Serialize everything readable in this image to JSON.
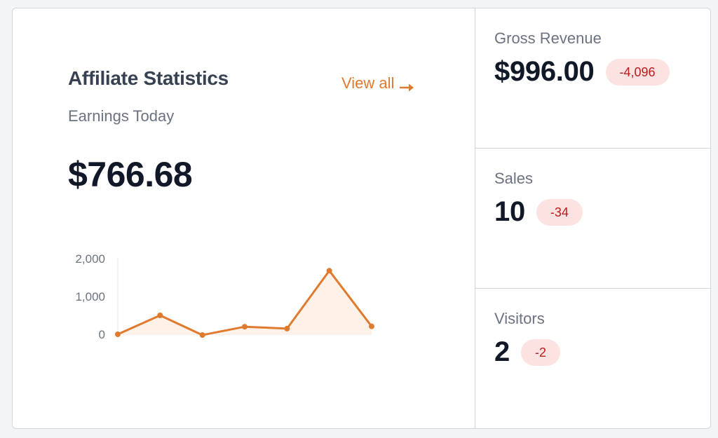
{
  "affiliate": {
    "title": "Affiliate Statistics",
    "view_all": "View all",
    "subtitle": "Earnings Today",
    "earnings": "$766.68",
    "accent_color": "#e07a2f"
  },
  "chart_data": {
    "type": "area",
    "x": [
      1,
      2,
      3,
      4,
      5,
      6,
      7
    ],
    "values": [
      0,
      500,
      -20,
      200,
      150,
      1680,
      210
    ],
    "ylim": [
      0,
      2000
    ],
    "yticks": [
      0,
      1000,
      2000
    ],
    "ytick_labels": [
      "0",
      "1,000",
      "2,000"
    ],
    "grid": false,
    "line_color": "#e07a2f",
    "fill_color": "#fdf1e8"
  },
  "stats": [
    {
      "label": "Gross Revenue",
      "value": "$996.00",
      "change": "-4,096"
    },
    {
      "label": "Sales",
      "value": "10",
      "change": "-34"
    },
    {
      "label": "Visitors",
      "value": "2",
      "change": "-2"
    }
  ],
  "badge_colors": {
    "background": "#fde2e2",
    "text": "#b91c1c"
  }
}
